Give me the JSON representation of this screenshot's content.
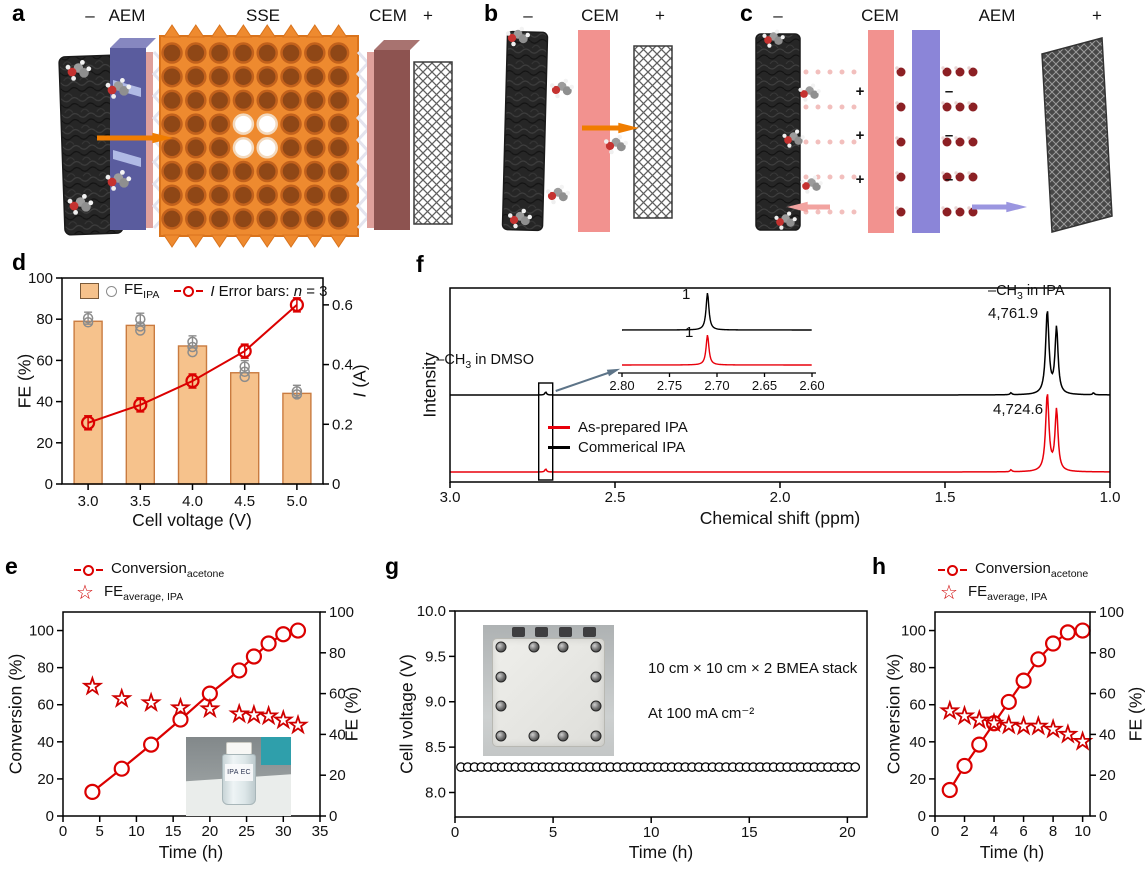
{
  "figure": {
    "panel_letters": {
      "a": "a",
      "b": "b",
      "c": "c",
      "d": "d",
      "e": "e",
      "f": "f",
      "g": "g",
      "h": "h"
    }
  },
  "schematics": {
    "a": {
      "neg": "–",
      "aem": "AEM",
      "sse": "SSE",
      "cem": "CEM",
      "pos": "+"
    },
    "b": {
      "neg": "–",
      "cem": "CEM",
      "pos": "+"
    },
    "c": {
      "neg": "–",
      "cem": "CEM",
      "aem": "AEM",
      "pos": "+",
      "charge_plus": "+",
      "charge_minus": "–"
    }
  },
  "photos": {
    "vial_label": "IPA EC"
  },
  "icons": {
    "star": "☆"
  },
  "chart_data": [
    {
      "id": "d",
      "type": "bar",
      "xlabel": "Cell voltage (V)",
      "ylabel_left": "FE (%)",
      "ylabel_right_italic": "I",
      "ylabel_right_rest": " (A)",
      "categories": [
        "3.0",
        "3.5",
        "4.0",
        "4.5",
        "5.0"
      ],
      "fe_bars": [
        79,
        77,
        67,
        54,
        44
      ],
      "fe_replicates": [
        [
          80.5,
          78.5
        ],
        [
          80,
          76.5,
          74.5
        ],
        [
          69,
          66.5,
          64
        ],
        [
          57,
          54.5,
          52
        ],
        [
          45,
          43.5
        ]
      ],
      "current_A": [
        0.205,
        0.265,
        0.345,
        0.445,
        0.6
      ],
      "yticks_left": [
        0,
        20,
        40,
        60,
        80,
        100
      ],
      "ylim_left": [
        0,
        100
      ],
      "yticks_right": [
        "0",
        "0.2",
        "0.4",
        "0.6"
      ],
      "ylim_right": [
        0,
        0.69
      ],
      "legend": {
        "fe_text": "FE",
        "fe_sub": "IPA",
        "i": "I",
        "mid": " Error bars: ",
        "n": "n",
        "tail": " = 3"
      },
      "colors": {
        "bar": "#f6c28c",
        "bar_edge": "#c97b40",
        "line": "#db0000",
        "replicate": "#8c8c8c"
      }
    },
    {
      "id": "e",
      "type": "line",
      "xlabel": "Time (h)",
      "ylabel_left": "Conversion (%)",
      "ylabel_right": "FE (%)",
      "xticks": [
        0,
        5,
        10,
        15,
        20,
        25,
        30,
        35
      ],
      "xlim": [
        0,
        35
      ],
      "yticks_left": [
        0,
        20,
        40,
        60,
        80,
        100
      ],
      "ylim_left": [
        0,
        110
      ],
      "yticks_right": [
        0,
        20,
        40,
        60,
        80,
        100
      ],
      "ylim_right": [
        0,
        100
      ],
      "time_h": [
        4,
        8,
        12,
        16,
        20,
        24,
        26,
        28,
        30,
        32
      ],
      "conversion_pct": [
        13,
        25.5,
        38.5,
        52,
        66,
        78.5,
        86,
        93,
        98,
        100
      ],
      "fe_pct": [
        63.5,
        57.5,
        55.5,
        53,
        52.5,
        50,
        49.5,
        49,
        47,
        44.5
      ],
      "legend": {
        "conv_text": "Conversion",
        "conv_sub": "acetone",
        "fe_text": "FE",
        "fe_sub": "average, IPA"
      },
      "colors": {
        "line": "#db0000",
        "star": "#cf0000"
      }
    },
    {
      "id": "f",
      "type": "nmr",
      "xlabel": "Chemical shift (ppm)",
      "ylabel": "Intensity",
      "xticks": [
        "3.0",
        "2.5",
        "2.0",
        "1.5",
        "1.0"
      ],
      "xlim": [
        3.0,
        1.0
      ],
      "series": [
        {
          "name": "Commerical IPA",
          "color": "#000000",
          "peak_label": "4,761.9",
          "doublet_ppm": [
            1.19,
            1.162
          ]
        },
        {
          "name": "As-prepared IPA",
          "color": "#e8000b",
          "peak_label": "4,724.6",
          "doublet_ppm": [
            1.19,
            1.162
          ]
        }
      ],
      "annotations": {
        "ipa_pre": "–CH",
        "ipa_sub": "3",
        "ipa_post": " in IPA",
        "dmso_pre": "–CH",
        "dmso_sub": "3",
        "dmso_post": " in DMSO",
        "dmso_box_ppm": 2.71
      },
      "inset": {
        "xticks": [
          "2.80",
          "2.75",
          "2.70",
          "2.65",
          "2.60"
        ],
        "xlim": [
          2.8,
          2.6
        ],
        "peak_ppm": 2.71,
        "integral_black": "1",
        "integral_red": "1"
      }
    },
    {
      "id": "g",
      "type": "scatter",
      "xlabel": "Time (h)",
      "ylabel": "Cell voltage (V)",
      "xticks": [
        0,
        5,
        10,
        15,
        20
      ],
      "xlim": [
        0,
        21
      ],
      "yticks": [
        "8.0",
        "8.5",
        "9.0",
        "9.5",
        "10.0"
      ],
      "ylim": [
        7.73,
        10.0
      ],
      "voltage_V": 8.28,
      "t_start": 0.3,
      "t_end": 20.4,
      "n_points": 59,
      "note_line1": "10 cm × 10 cm × 2 BMEA stack",
      "note_line2": "At 100 mA cm⁻²"
    },
    {
      "id": "h",
      "type": "line",
      "xlabel": "Time (h)",
      "ylabel_left": "Conversion (%)",
      "ylabel_right": "FE (%)",
      "xticks": [
        0,
        2,
        4,
        6,
        8,
        10
      ],
      "xlim": [
        0,
        10.5
      ],
      "yticks_left": [
        0,
        20,
        40,
        60,
        80,
        100
      ],
      "ylim_left": [
        0,
        110
      ],
      "yticks_right": [
        0,
        20,
        40,
        60,
        80,
        100
      ],
      "ylim_right": [
        0,
        100
      ],
      "time_h": [
        1,
        2,
        3,
        4,
        5,
        6,
        7,
        8,
        9,
        10
      ],
      "conversion_pct": [
        14,
        27,
        38.5,
        50,
        61.5,
        73,
        84.5,
        93,
        99,
        100
      ],
      "fe_pct": [
        51.5,
        49,
        47,
        45.5,
        44.5,
        44,
        44,
        42.5,
        40,
        36.5
      ],
      "legend": {
        "conv_text": "Conversion",
        "conv_sub": "acetone",
        "fe_text": "FE",
        "fe_sub": "average, IPA"
      },
      "colors": {
        "line": "#db0000",
        "star": "#cf0000"
      }
    }
  ]
}
